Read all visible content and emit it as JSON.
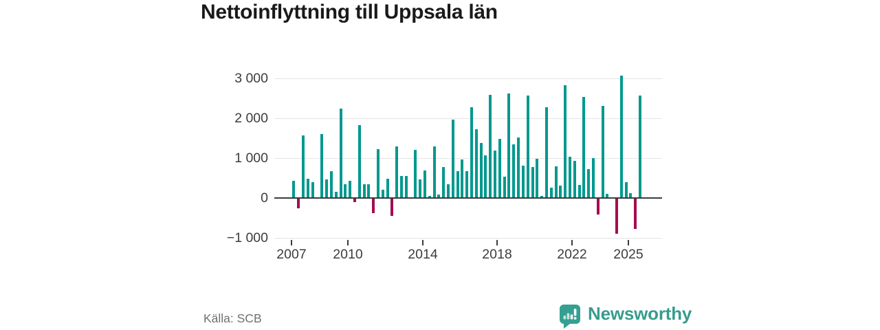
{
  "title": "Nettoinflyttning till Uppsala län",
  "source_label": "Källa: SCB",
  "branding": {
    "wordmark": "Newsworthy"
  },
  "colors": {
    "positive": "#00988E",
    "negative": "#A60C4E",
    "grid": "#e4e4e4",
    "zero_line": "#3b3b3b",
    "title_text": "#1a1a1a",
    "axis_text": "#3c3c3c",
    "source_text": "#707070",
    "brand_teal": "#389C8D"
  },
  "chart_data": {
    "type": "bar",
    "title": "Nettoinflyttning till Uppsala län",
    "frequency": "quarterly",
    "start_period": "2007 Q1",
    "end_period": "2025 Q3",
    "values": [
      430,
      -240,
      1560,
      480,
      400,
      10,
      1610,
      470,
      670,
      150,
      2240,
      340,
      430,
      -90,
      1820,
      350,
      340,
      -360,
      1220,
      200,
      480,
      -430,
      1300,
      560,
      550,
      10,
      1210,
      460,
      690,
      60,
      1300,
      90,
      770,
      350,
      1960,
      680,
      970,
      670,
      2270,
      1715,
      1380,
      1060,
      2590,
      1180,
      1480,
      535,
      2615,
      1340,
      1520,
      805,
      2560,
      775,
      985,
      60,
      2270,
      260,
      795,
      305,
      2815,
      1025,
      935,
      335,
      2535,
      720,
      1005,
      -400,
      2310,
      100,
      0,
      -880,
      3070,
      390,
      115,
      -760,
      2560
    ],
    "y_ticks": [
      3000,
      2000,
      1000,
      0,
      -1000
    ],
    "y_tick_labels": [
      "3 000",
      "2 000",
      "1 000",
      "0",
      "−1 000"
    ],
    "x_tick_years": [
      2007,
      2010,
      2014,
      2018,
      2022,
      2025
    ],
    "x_tick_labels": [
      "2007",
      "2010",
      "2014",
      "2018",
      "2022",
      "2025"
    ],
    "ylim": [
      -1000,
      3200
    ],
    "grid": true,
    "legend": "none",
    "xlabel": "",
    "ylabel": ""
  }
}
